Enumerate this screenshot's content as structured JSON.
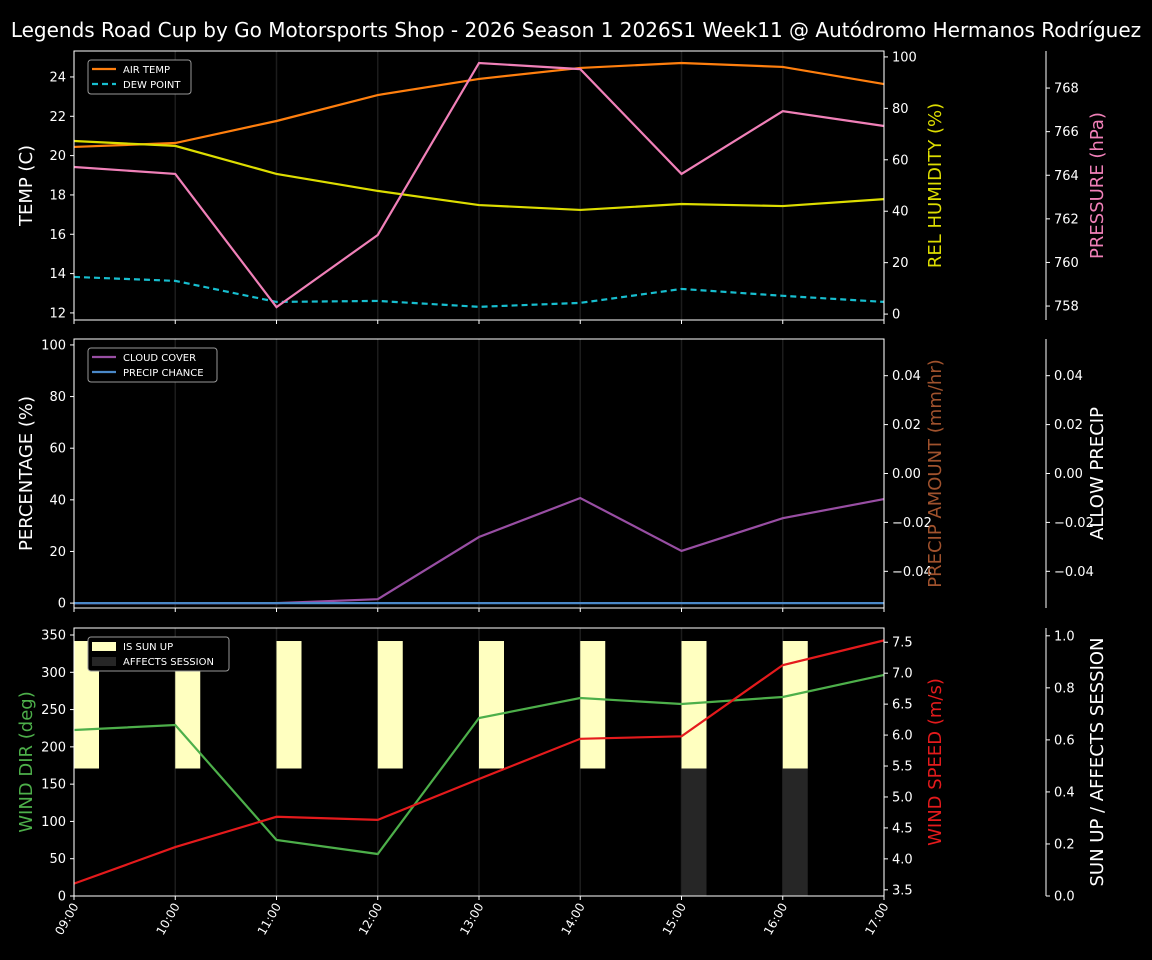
{
  "title": "Legends Road Cup by Go Motorsports Shop - 2026 Season 1 2026S1 Week11 @ Autódromo Hermanos Rodríguez",
  "chart_data": [
    {
      "type": "line",
      "x": [
        "09:00",
        "10:00",
        "11:00",
        "12:00",
        "13:00",
        "14:00",
        "15:00",
        "16:00",
        "17:00"
      ],
      "grid": "vertical",
      "legend": {
        "placement": "top-left",
        "entries": [
          "AIR TEMP",
          "DEW POINT"
        ]
      },
      "axes": [
        {
          "id": "temp",
          "side": "left",
          "label": "TEMP (C)",
          "label_color": "#ffffff",
          "ylim": [
            11.64,
            25.32
          ],
          "ticks": [
            12,
            14,
            16,
            18,
            20,
            22,
            24
          ],
          "tick_labels": [
            "12",
            "14",
            "16",
            "18",
            "20",
            "22",
            "24"
          ]
        },
        {
          "id": "hum",
          "side": "right",
          "label": "REL HUMIDITY (%)",
          "label_color": "#dddd00",
          "ylim": [
            -2.3,
            102.3
          ],
          "ticks": [
            0,
            20,
            40,
            60,
            80,
            100
          ],
          "tick_labels": [
            "0",
            "20",
            "40",
            "60",
            "80",
            "100"
          ]
        },
        {
          "id": "pres",
          "side": "right-outer",
          "label": "PRESSURE (hPa)",
          "label_color": "#f080b8",
          "ylim": [
            757.36,
            769.7
          ],
          "ticks": [
            758,
            760,
            762,
            764,
            766,
            768
          ],
          "tick_labels": [
            "758",
            "760",
            "762",
            "764",
            "766",
            "768"
          ]
        }
      ],
      "series": [
        {
          "name": "AIR TEMP",
          "axis": "temp",
          "color": "#ff7f0e",
          "dash": false,
          "values": [
            20.44,
            20.64,
            21.76,
            23.08,
            23.9,
            24.46,
            24.71,
            24.51,
            23.64
          ]
        },
        {
          "name": "DEW POINT",
          "axis": "temp",
          "color": "#17becf",
          "dash": true,
          "values": [
            13.83,
            13.63,
            12.56,
            12.61,
            12.31,
            12.51,
            13.22,
            12.87,
            12.56
          ]
        },
        {
          "axis": "hum",
          "color": "#dddd00",
          "dash": false,
          "values": [
            67.3,
            65.4,
            54.5,
            47.9,
            42.4,
            40.5,
            42.8,
            42.0,
            44.7
          ]
        },
        {
          "axis": "pres",
          "color": "#f080b8",
          "dash": false,
          "values": [
            764.38,
            764.06,
            757.95,
            761.26,
            769.15,
            768.87,
            764.06,
            766.94,
            766.26
          ]
        }
      ]
    },
    {
      "type": "line",
      "x": [
        "09:00",
        "10:00",
        "11:00",
        "12:00",
        "13:00",
        "14:00",
        "15:00",
        "16:00",
        "17:00"
      ],
      "grid": "vertical",
      "legend": {
        "placement": "top-left",
        "entries": [
          "CLOUD COVER",
          "PRECIP CHANCE"
        ]
      },
      "axes": [
        {
          "id": "pct",
          "side": "left",
          "label": "PERCENTAGE (%)",
          "label_color": "#ffffff",
          "ylim": [
            -1.9,
            102.3
          ],
          "ticks": [
            0,
            20,
            40,
            60,
            80,
            100
          ],
          "tick_labels": [
            "0",
            "20",
            "40",
            "60",
            "80",
            "100"
          ]
        },
        {
          "id": "amt",
          "side": "right",
          "label": "PRECIP AMOUNT (mm/hr)",
          "label_color": "#a0522d",
          "ylim": [
            -0.055,
            0.055
          ],
          "ticks": [
            -0.04,
            -0.02,
            0,
            0.02,
            0.04
          ],
          "tick_labels": [
            "−0.04",
            "−0.02",
            "0.00",
            "0.02",
            "0.04"
          ]
        },
        {
          "id": "allow",
          "side": "right-outer",
          "label": "ALLOW PRECIP",
          "label_color": "#ffffff",
          "ylim": [
            -0.055,
            0.055
          ],
          "ticks": [
            -0.04,
            -0.02,
            0,
            0.02,
            0.04
          ],
          "tick_labels": [
            "−0.04",
            "−0.02",
            "0.00",
            "0.02",
            "0.04"
          ]
        }
      ],
      "series": [
        {
          "name": "CLOUD COVER",
          "axis": "pct",
          "color": "#984ea3",
          "dash": false,
          "values": [
            0,
            0,
            0,
            1.5,
            25.6,
            40.7,
            20.2,
            32.9,
            40.3
          ]
        },
        {
          "name": "PRECIP CHANCE",
          "axis": "pct",
          "color": "#4a88c8",
          "dash": false,
          "values": [
            0,
            0,
            0,
            0,
            0,
            0,
            0,
            0,
            0
          ]
        }
      ]
    },
    {
      "type": "line",
      "x": [
        "09:00",
        "10:00",
        "11:00",
        "12:00",
        "13:00",
        "14:00",
        "15:00",
        "16:00",
        "17:00"
      ],
      "grid": "vertical",
      "legend": {
        "placement": "top-left",
        "entries": [
          "IS SUN UP",
          "AFFECTS SESSION"
        ]
      },
      "axes": [
        {
          "id": "dir",
          "side": "left",
          "label": "WIND DIR (deg)",
          "label_color": "#4daf4a",
          "ylim": [
            0,
            359.4
          ],
          "ticks": [
            0,
            50,
            100,
            150,
            200,
            250,
            300,
            350
          ],
          "tick_labels": [
            "0",
            "50",
            "100",
            "150",
            "200",
            "250",
            "300",
            "350"
          ]
        },
        {
          "id": "spd",
          "side": "right",
          "label": "WIND SPEED (m/s)",
          "label_color": "#e41a1c",
          "ylim": [
            3.4,
            7.73
          ],
          "ticks": [
            3.5,
            4,
            4.5,
            5,
            5.5,
            6,
            6.5,
            7,
            7.5
          ],
          "tick_labels": [
            "3.5",
            "4.0",
            "4.5",
            "5.0",
            "5.5",
            "6.0",
            "6.5",
            "7.0",
            "7.5"
          ]
        },
        {
          "id": "sun",
          "side": "right-outer",
          "label": "SUN UP / AFFECTS SESSION",
          "label_color": "#ffffff",
          "ylim": [
            0,
            1.03
          ],
          "ticks": [
            0,
            0.2,
            0.4,
            0.6,
            0.8,
            1.0
          ],
          "tick_labels": [
            "0.0",
            "0.2",
            "0.4",
            "0.6",
            "0.8",
            "1.0"
          ]
        }
      ],
      "bars": [
        {
          "name": "IS SUN UP",
          "axis": "sun",
          "color": "#ffffc0",
          "values": [
            1,
            1,
            1,
            1,
            1,
            1,
            1,
            1,
            0
          ]
        },
        {
          "name": "AFFECTS SESSION",
          "axis": "sun",
          "color": "#262626",
          "values": [
            0,
            0,
            0,
            0,
            0,
            0,
            1,
            1,
            0
          ]
        }
      ],
      "series": [
        {
          "axis": "dir",
          "color": "#4daf4a",
          "dash": false,
          "values": [
            222.6,
            229.3,
            75.1,
            56.3,
            238.7,
            265.5,
            257.5,
            266.9,
            296.4
          ]
        },
        {
          "axis": "spd",
          "color": "#e41a1c",
          "dash": false,
          "values": [
            3.6,
            4.19,
            4.68,
            4.63,
            5.29,
            5.94,
            5.98,
            7.13,
            7.53
          ]
        }
      ]
    }
  ]
}
